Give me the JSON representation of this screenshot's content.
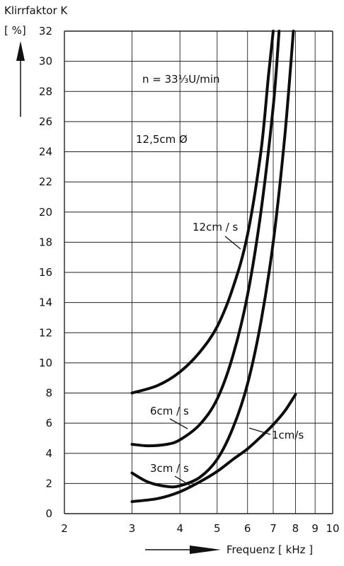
{
  "chart_data": {
    "type": "line",
    "xscale": "log",
    "xlim": [
      2,
      10
    ],
    "ylim": [
      0,
      32
    ],
    "grid": true,
    "ylabel": [
      "Klirrfaktor K",
      "[ %]"
    ],
    "xlabel": "Frequenz [ kHz ]",
    "xticks": [
      2,
      3,
      4,
      5,
      6,
      7,
      8,
      9,
      10
    ],
    "yticks": [
      0,
      2,
      4,
      6,
      8,
      10,
      12,
      14,
      16,
      18,
      20,
      22,
      24,
      26,
      28,
      30,
      32
    ],
    "annotations": [
      "n = 33⅓U/min",
      "12,5cm Ø"
    ],
    "series": [
      {
        "name": "12cm / s",
        "points": [
          [
            3,
            8
          ],
          [
            3.5,
            8.5
          ],
          [
            4,
            9.4
          ],
          [
            4.5,
            10.7
          ],
          [
            5,
            12.4
          ],
          [
            5.5,
            15
          ],
          [
            6,
            18.5
          ],
          [
            6.5,
            24
          ],
          [
            6.8,
            29
          ],
          [
            7,
            32
          ]
        ]
      },
      {
        "name": "6cm / s",
        "points": [
          [
            3,
            4.6
          ],
          [
            3.3,
            4.5
          ],
          [
            3.7,
            4.6
          ],
          [
            4,
            4.9
          ],
          [
            4.5,
            5.9
          ],
          [
            5,
            7.6
          ],
          [
            5.5,
            10.5
          ],
          [
            6,
            14.5
          ],
          [
            6.5,
            20
          ],
          [
            7,
            27
          ],
          [
            7.25,
            32
          ]
        ]
      },
      {
        "name": "3cm / s",
        "points": [
          [
            3,
            2.7
          ],
          [
            3.3,
            2.1
          ],
          [
            3.7,
            1.8
          ],
          [
            4,
            1.85
          ],
          [
            4.5,
            2.4
          ],
          [
            5,
            3.6
          ],
          [
            5.5,
            5.7
          ],
          [
            6,
            8.6
          ],
          [
            6.5,
            12.7
          ],
          [
            7,
            18
          ],
          [
            7.5,
            25
          ],
          [
            7.9,
            32
          ]
        ]
      },
      {
        "name": "1cm/s",
        "points": [
          [
            3,
            0.8
          ],
          [
            3.5,
            1
          ],
          [
            4,
            1.45
          ],
          [
            4.5,
            2.1
          ],
          [
            5,
            2.8
          ],
          [
            5.5,
            3.6
          ],
          [
            6,
            4.3
          ],
          [
            6.5,
            5.1
          ],
          [
            7,
            5.9
          ],
          [
            7.5,
            6.8
          ],
          [
            8,
            7.9
          ]
        ]
      }
    ]
  }
}
